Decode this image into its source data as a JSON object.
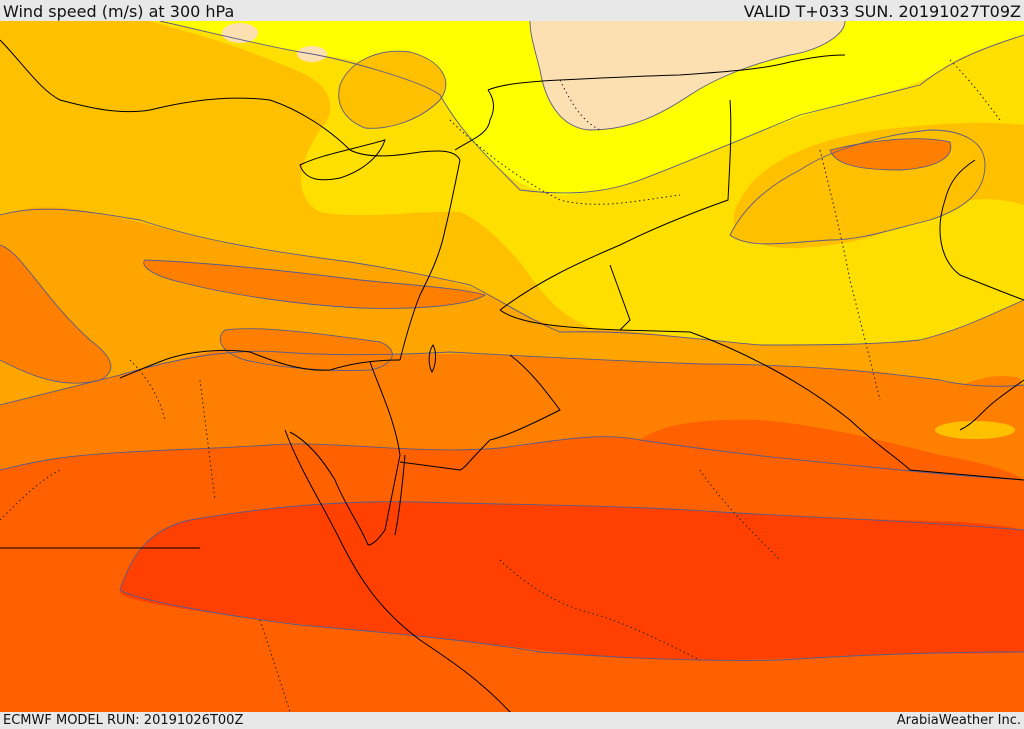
{
  "header": {
    "title": "Wind speed (m/s) at 300 hPa",
    "valid": "VALID T+033 SUN. 20191027T09Z"
  },
  "footer": {
    "model_run": "ECMWF MODEL RUN: 20191026T00Z",
    "credit": "ArabiaWeather Inc."
  },
  "map": {
    "field": "wind speed at 300 hPa",
    "colors": {
      "pale_peach": "#fde0b2",
      "yellow": "#ffff00",
      "light_orange_yellow": "#ffdf00",
      "gold": "#ffc000",
      "orange_light": "#ffa500",
      "orange": "#ff8000",
      "orange_red": "#ff6000",
      "red_orange": "#ff4000",
      "contour": "#5a5a8a",
      "coast": "#000000",
      "border": "#000000"
    }
  }
}
